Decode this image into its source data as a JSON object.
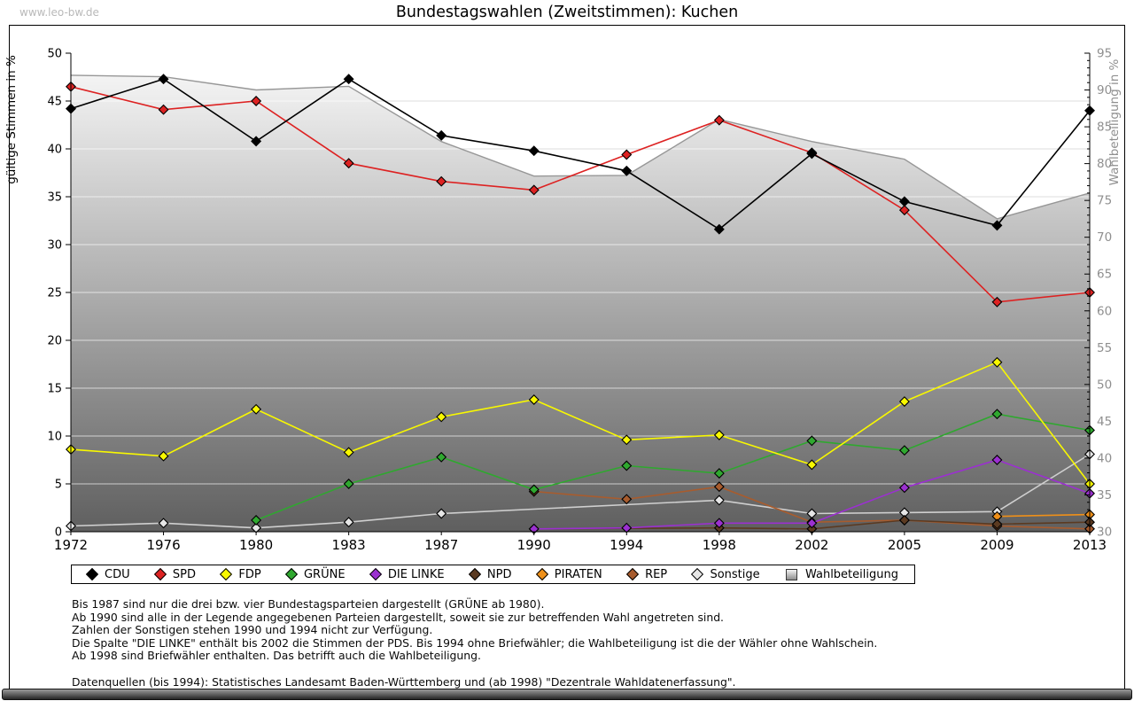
{
  "page": {
    "watermark": "www.leo-bw.de",
    "title": "Bundestagswahlen (Zweitstimmen): Kuchen"
  },
  "chart_data": {
    "type": "line",
    "title": "Bundestagswahlen (Zweitstimmen): Kuchen",
    "x_categories": [
      "1972",
      "1976",
      "1980",
      "1983",
      "1987",
      "1990",
      "1994",
      "1998",
      "2002",
      "2005",
      "2009",
      "2013"
    ],
    "y_left": {
      "label": "gültige Stimmen in %",
      "min": 0,
      "max": 50,
      "tick_step": 5
    },
    "y_right": {
      "label": "Wahlbeteiligung in %",
      "min": 30,
      "max": 95,
      "tick_step": 5
    },
    "grid": "horizontal",
    "legend_position": "bottom",
    "series": [
      {
        "name": "CDU",
        "kind": "line",
        "axis": "left",
        "color": "#000000",
        "values": [
          44.2,
          47.3,
          40.8,
          47.3,
          41.4,
          39.8,
          37.7,
          31.6,
          39.5,
          34.5,
          32.0,
          44.0
        ]
      },
      {
        "name": "SPD",
        "kind": "line",
        "axis": "left",
        "color": "#dd2222",
        "values": [
          46.5,
          44.1,
          45.0,
          38.5,
          36.6,
          35.7,
          39.4,
          43.0,
          39.6,
          33.6,
          24.0,
          25.0
        ]
      },
      {
        "name": "FDP",
        "kind": "line",
        "axis": "left",
        "color": "#f8f800",
        "values": [
          8.6,
          7.9,
          12.8,
          8.3,
          12.0,
          13.8,
          9.6,
          10.1,
          7.0,
          13.6,
          17.7,
          5.0
        ]
      },
      {
        "name": "GRÜNE",
        "kind": "line",
        "axis": "left",
        "color": "#2fa82f",
        "values": [
          null,
          null,
          1.2,
          5.0,
          7.8,
          4.4,
          6.9,
          6.1,
          9.5,
          8.5,
          12.3,
          10.6
        ]
      },
      {
        "name": "DIE LINKE",
        "kind": "line",
        "axis": "left",
        "color": "#9b30d0",
        "values": [
          null,
          null,
          null,
          null,
          null,
          0.3,
          0.4,
          0.9,
          0.9,
          4.6,
          7.5,
          4.0
        ]
      },
      {
        "name": "NPD",
        "kind": "line",
        "axis": "left",
        "color": "#5b3a21",
        "values": [
          null,
          null,
          null,
          null,
          null,
          0.3,
          null,
          0.4,
          0.3,
          1.2,
          0.8,
          1.0
        ]
      },
      {
        "name": "PIRATEN",
        "kind": "line",
        "axis": "left",
        "color": "#ef9019",
        "values": [
          null,
          null,
          null,
          null,
          null,
          null,
          null,
          null,
          null,
          null,
          1.6,
          1.8
        ]
      },
      {
        "name": "REP",
        "kind": "line",
        "axis": "left",
        "color": "#a85c2e",
        "values": [
          null,
          null,
          null,
          null,
          null,
          4.2,
          3.4,
          4.7,
          1.0,
          1.2,
          0.6,
          0.3
        ]
      },
      {
        "name": "Sonstige",
        "kind": "line",
        "axis": "left",
        "color": "#cfcfcf",
        "marker_fill": "#e6e6e6",
        "values": [
          0.6,
          0.9,
          0.4,
          1.0,
          1.9,
          null,
          null,
          3.3,
          1.9,
          2.0,
          2.1,
          8.1
        ]
      },
      {
        "name": "Wahlbeteiligung",
        "kind": "area",
        "axis": "right",
        "color": "#979797",
        "values": [
          92.0,
          91.8,
          90.0,
          90.5,
          83.0,
          78.3,
          78.4,
          86.0,
          83.0,
          80.6,
          72.5,
          76.0
        ]
      }
    ]
  },
  "footnotes": {
    "lines": [
      "Bis 1987 sind nur die drei bzw. vier Bundestagsparteien dargestellt (GRÜNE ab 1980).",
      "Ab 1990 sind alle in der Legende angegebenen Parteien dargestellt, soweit sie zur betreffenden Wahl angetreten sind.",
      "Zahlen der Sonstigen stehen 1990 und 1994 nicht zur Verfügung.",
      "Die Spalte \"DIE LINKE\" enthält bis 2002 die Stimmen der PDS. Bis 1994 ohne Briefwähler; die Wahlbeteiligung ist die der Wähler ohne Wahlschein.",
      "Ab 1998 sind Briefwähler enthalten. Das betrifft auch die Wahlbeteiligung.",
      "",
      "Datenquellen (bis 1994): Statistisches Landesamt Baden-Württemberg und (ab 1998) \"Dezentrale Wahldatenerfassung\"."
    ]
  }
}
